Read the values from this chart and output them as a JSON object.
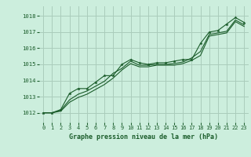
{
  "title": "Graphe pression niveau de la mer (hPa)",
  "background_color": "#cceedd",
  "grid_color": "#aaccbb",
  "line_color": "#1a5c2a",
  "xlim": [
    -0.5,
    23.5
  ],
  "ylim": [
    1011.4,
    1018.6
  ],
  "yticks": [
    1012,
    1013,
    1014,
    1015,
    1016,
    1017,
    1018
  ],
  "xticks": [
    0,
    1,
    2,
    3,
    4,
    5,
    6,
    7,
    8,
    9,
    10,
    11,
    12,
    13,
    14,
    15,
    16,
    17,
    18,
    19,
    20,
    21,
    22,
    23
  ],
  "series1": [
    1012.0,
    1012.0,
    1012.2,
    1013.2,
    1013.5,
    1013.5,
    1013.9,
    1014.3,
    1014.3,
    1015.0,
    1015.3,
    1015.1,
    1015.0,
    1015.1,
    1015.1,
    1015.2,
    1015.3,
    1015.3,
    1016.3,
    1017.0,
    1017.1,
    1017.5,
    1017.9,
    1017.6
  ],
  "series2": [
    1012.0,
    1012.0,
    1012.15,
    1012.8,
    1013.15,
    1013.35,
    1013.65,
    1013.95,
    1014.45,
    1014.75,
    1015.2,
    1014.95,
    1014.95,
    1015.0,
    1015.0,
    1015.05,
    1015.15,
    1015.4,
    1015.8,
    1016.85,
    1016.95,
    1017.05,
    1017.75,
    1017.45
  ],
  "series3": [
    1012.0,
    1012.0,
    1012.1,
    1012.65,
    1012.95,
    1013.15,
    1013.45,
    1013.75,
    1014.15,
    1014.65,
    1015.05,
    1014.85,
    1014.85,
    1014.95,
    1014.95,
    1014.95,
    1015.05,
    1015.25,
    1015.55,
    1016.75,
    1016.85,
    1016.95,
    1017.65,
    1017.35
  ]
}
